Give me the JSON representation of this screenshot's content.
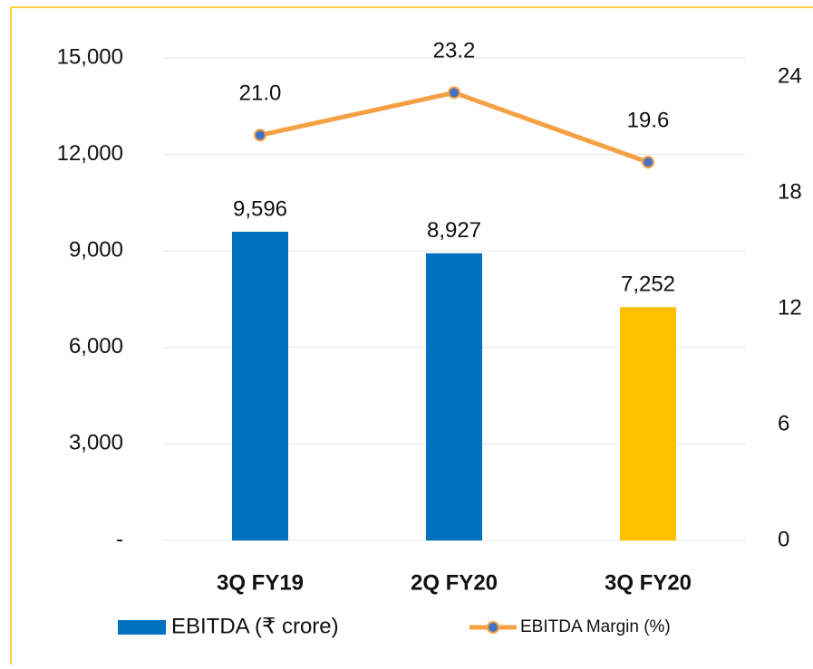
{
  "chart_data": {
    "type": "bar",
    "categories": [
      "3Q FY19",
      "2Q FY20",
      "3Q FY20"
    ],
    "series": [
      {
        "name": "EBITDA (₹ crore)",
        "type": "bar",
        "colors": [
          "#0070C0",
          "#0070C0",
          "#FFC000"
        ],
        "values": [
          9596,
          8927,
          7252
        ],
        "value_labels": [
          "9,596",
          "8,927",
          "7,252"
        ]
      },
      {
        "name": "EBITDA Margin (%)",
        "type": "line",
        "axis": "y2",
        "color": "#F5A043",
        "marker_color": "#4472C4",
        "values": [
          21.0,
          23.2,
          19.6
        ],
        "value_labels": [
          "21.0",
          "23.2",
          "19.6"
        ]
      }
    ],
    "ylim": [
      0,
      15000
    ],
    "yticks": [
      {
        "value": 0,
        "label": "-"
      },
      {
        "value": 3000,
        "label": "3,000"
      },
      {
        "value": 6000,
        "label": "6,000"
      },
      {
        "value": 9000,
        "label": "9,000"
      },
      {
        "value": 12000,
        "label": "12,000"
      },
      {
        "value": 15000,
        "label": "15,000"
      }
    ],
    "y2lim": [
      0,
      25
    ],
    "y2ticks": [
      0,
      6,
      12,
      18,
      24
    ],
    "grid": true
  }
}
